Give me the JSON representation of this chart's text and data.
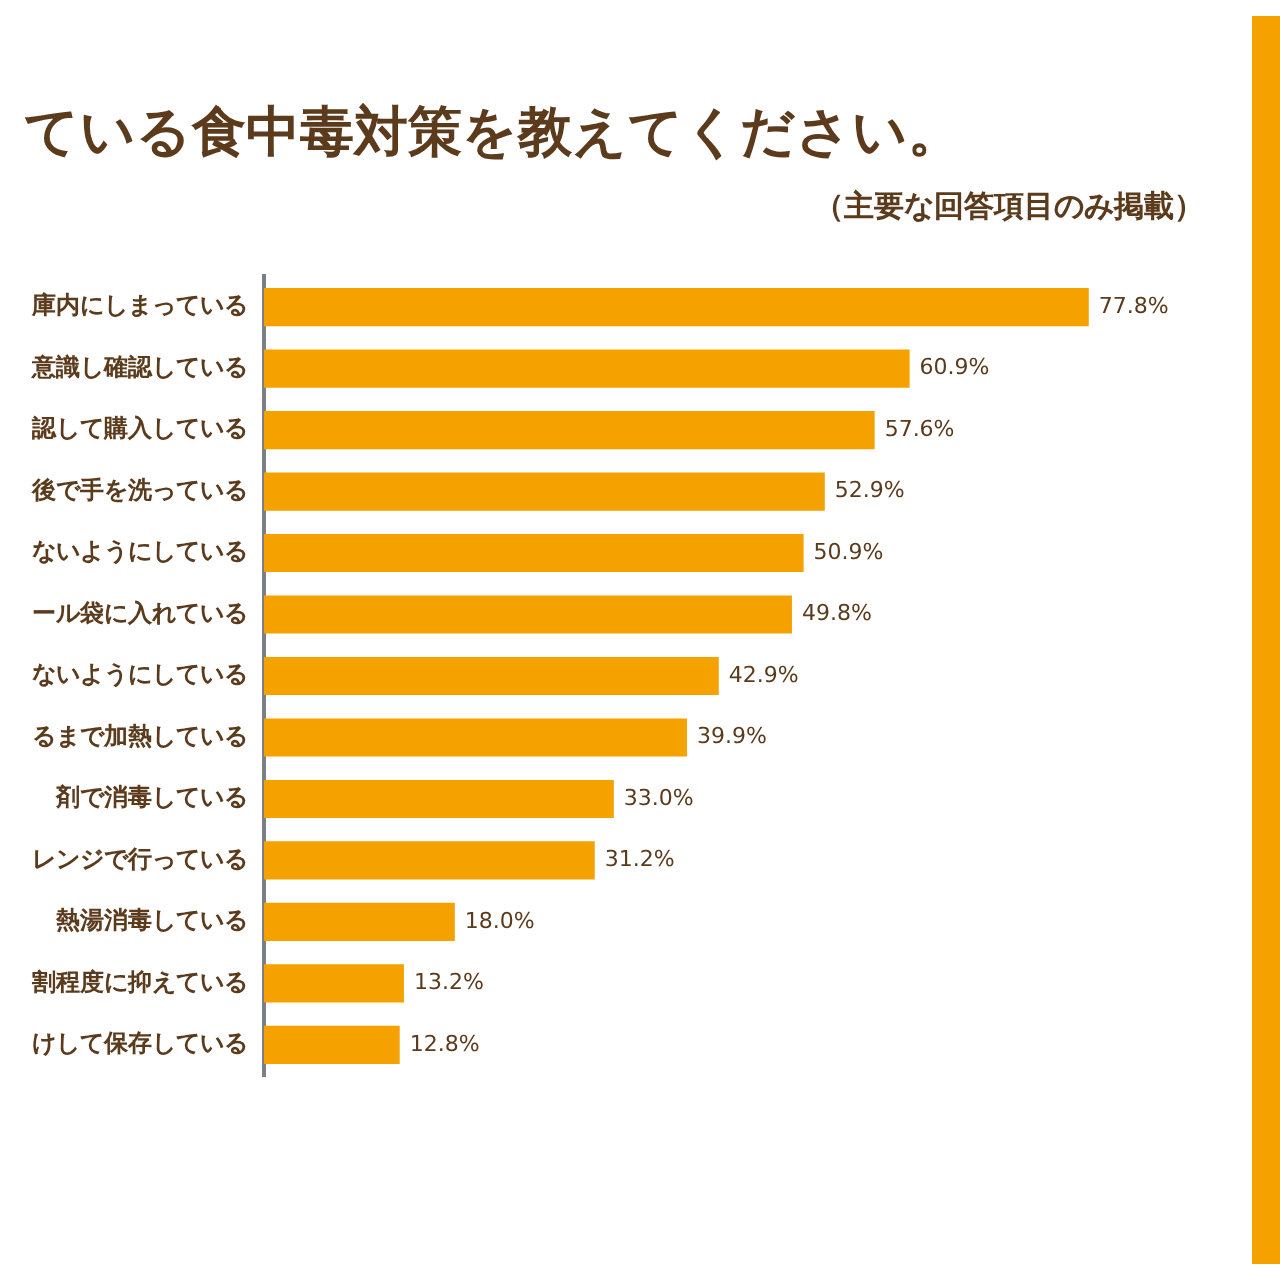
{
  "chart_data": {
    "type": "bar",
    "orientation": "horizontal",
    "title": "ている食中毒対策を教えてください。",
    "subtitle": "（主要な回答項目のみ掲載）",
    "categories": [
      "庫内にしまっている",
      "意識し確認している",
      "認して購入している",
      "後で手を洗っている",
      "ないようにしている",
      "ール袋に入れている",
      "ないようにしている",
      "るまで加熱している",
      "剤で消毒している",
      "レンジで行っている",
      "熱湯消毒している",
      "割程度に抑えている",
      "けして保存している"
    ],
    "values": [
      77.8,
      60.9,
      57.6,
      52.9,
      50.9,
      49.8,
      42.9,
      39.9,
      33.0,
      31.2,
      18.0,
      13.2,
      12.8
    ],
    "value_labels": [
      "77.8%",
      "60.9%",
      "57.6%",
      "52.9%",
      "50.9%",
      "49.8%",
      "42.9%",
      "39.9%",
      "33.0%",
      "31.2%",
      "18.0%",
      "13.2%",
      "12.8%"
    ],
    "color": "#f5a100",
    "legend": false
  }
}
